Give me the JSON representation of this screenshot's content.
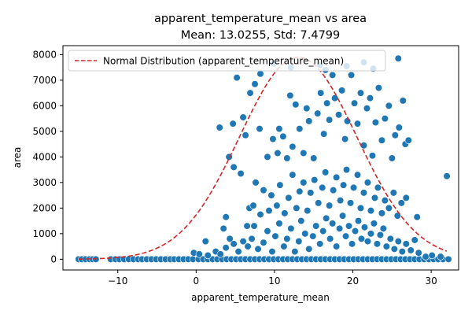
{
  "chart_data": {
    "type": "scatter",
    "title": "apparent_temperature_mean vs area",
    "subtitle": "Mean: 13.0255, Std: 7.4799",
    "xlabel": "apparent_temperature_mean",
    "ylabel": "area",
    "xlim": [
      -17,
      33.5
    ],
    "ylim": [
      -420,
      8350
    ],
    "xticks": [
      -10,
      0,
      10,
      20,
      30
    ],
    "yticks": [
      0,
      1000,
      2000,
      3000,
      4000,
      5000,
      6000,
      7000,
      8000
    ],
    "grid": false,
    "legend_position": "top-left",
    "colors": {
      "scatter": "#1f77b4",
      "curve": "#d62728"
    },
    "normal_curve": {
      "name": "Normal Distribution (apparent_temperature_mean)",
      "mean": 13.0255,
      "std": 7.4799,
      "peak_area": 7900,
      "style": "dashed"
    },
    "series": [
      {
        "points": [
          [
            -15,
            0
          ],
          [
            -14.6,
            0
          ],
          [
            -14.1,
            0
          ],
          [
            -13.6,
            0
          ],
          [
            -13.2,
            0
          ],
          [
            -12.8,
            0
          ],
          [
            -10.9,
            0
          ],
          [
            -10.3,
            0
          ],
          [
            -9.8,
            0
          ],
          [
            -9.2,
            0
          ],
          [
            -8.6,
            0
          ],
          [
            -8,
            0
          ],
          [
            -7.4,
            0
          ],
          [
            -6.9,
            0
          ],
          [
            -6.3,
            0
          ],
          [
            -5.7,
            0
          ],
          [
            -5.1,
            0
          ],
          [
            -4.5,
            0
          ],
          [
            -3.9,
            0
          ],
          [
            -3.3,
            0
          ],
          [
            -2.8,
            0
          ],
          [
            -2.2,
            0
          ],
          [
            -1.6,
            0
          ],
          [
            -1,
            0
          ],
          [
            -0.4,
            0
          ],
          [
            0.3,
            0
          ],
          [
            0.9,
            0
          ],
          [
            1.5,
            0
          ],
          [
            2.1,
            0
          ],
          [
            2.7,
            0
          ],
          [
            3.3,
            0
          ],
          [
            3.9,
            0
          ],
          [
            4.5,
            0
          ],
          [
            5.1,
            0
          ],
          [
            5.7,
            0
          ],
          [
            6.3,
            0
          ],
          [
            6.9,
            0
          ],
          [
            7.5,
            0
          ],
          [
            8.1,
            0
          ],
          [
            8.7,
            0
          ],
          [
            9.3,
            0
          ],
          [
            9.9,
            0
          ],
          [
            10.5,
            0
          ],
          [
            11.1,
            0
          ],
          [
            11.7,
            0
          ],
          [
            12.3,
            0
          ],
          [
            12.9,
            0
          ],
          [
            13.5,
            0
          ],
          [
            14.1,
            0
          ],
          [
            14.7,
            0
          ],
          [
            15.3,
            0
          ],
          [
            15.9,
            0
          ],
          [
            16.5,
            0
          ],
          [
            17.1,
            0
          ],
          [
            17.7,
            0
          ],
          [
            18.3,
            0
          ],
          [
            18.9,
            0
          ],
          [
            19.5,
            0
          ],
          [
            20.1,
            0
          ],
          [
            20.7,
            0
          ],
          [
            21.3,
            0
          ],
          [
            21.9,
            0
          ],
          [
            22.5,
            0
          ],
          [
            23.1,
            0
          ],
          [
            23.7,
            0
          ],
          [
            24.3,
            0
          ],
          [
            24.9,
            0
          ],
          [
            25.5,
            0
          ],
          [
            26.1,
            0
          ],
          [
            26.7,
            0
          ],
          [
            27.3,
            0
          ],
          [
            27.9,
            0
          ],
          [
            28.5,
            0
          ],
          [
            29.1,
            0
          ],
          [
            29.7,
            0
          ],
          [
            30.3,
            0
          ],
          [
            30.9,
            0
          ],
          [
            31.5,
            0
          ],
          [
            32.2,
            0
          ],
          [
            -0.3,
            250
          ],
          [
            0.4,
            200
          ],
          [
            1.2,
            700
          ],
          [
            1.5,
            150
          ],
          [
            2.5,
            300
          ],
          [
            3.1,
            200
          ],
          [
            3.8,
            450
          ],
          [
            4.3,
            800
          ],
          [
            4.8,
            600
          ],
          [
            5.4,
            300
          ],
          [
            6,
            700
          ],
          [
            6.6,
            500
          ],
          [
            7.1,
            800
          ],
          [
            7.4,
            1300
          ],
          [
            7.9,
            400
          ],
          [
            8.6,
            650
          ],
          [
            9.1,
            1100
          ],
          [
            9.7,
            300
          ],
          [
            10.1,
            900
          ],
          [
            10.6,
            1400
          ],
          [
            11.2,
            500
          ],
          [
            11.6,
            800
          ],
          [
            12.1,
            1200
          ],
          [
            12.6,
            300
          ],
          [
            13.1,
            700
          ],
          [
            13.4,
            1500
          ],
          [
            13.9,
            1000
          ],
          [
            14.4,
            400
          ],
          [
            14.9,
            900
          ],
          [
            15.3,
            1300
          ],
          [
            15.8,
            600
          ],
          [
            16.2,
            1100
          ],
          [
            16.6,
            1600
          ],
          [
            17.1,
            800
          ],
          [
            17.4,
            1400
          ],
          [
            17.9,
            500
          ],
          [
            18.3,
            1200
          ],
          [
            18.7,
            1700
          ],
          [
            19.1,
            900
          ],
          [
            19.5,
            1300
          ],
          [
            19.9,
            600
          ],
          [
            20.3,
            1100
          ],
          [
            20.7,
            1500
          ],
          [
            21.1,
            800
          ],
          [
            21.5,
            1250
          ],
          [
            21.9,
            700
          ],
          [
            22.3,
            1000
          ],
          [
            22.7,
            1400
          ],
          [
            23.1,
            600
          ],
          [
            23.5,
            950
          ],
          [
            23.9,
            1200
          ],
          [
            24.3,
            500
          ],
          [
            24.8,
            800
          ],
          [
            25.3,
            400
          ],
          [
            25.8,
            700
          ],
          [
            26.3,
            300
          ],
          [
            26.8,
            600
          ],
          [
            27.4,
            350
          ],
          [
            27.9,
            750
          ],
          [
            28.4,
            250
          ],
          [
            29.3,
            100
          ],
          [
            30.1,
            150
          ],
          [
            31.2,
            100
          ],
          [
            3.5,
            1200
          ],
          [
            3.8,
            1650
          ],
          [
            4.2,
            4000
          ],
          [
            4.8,
            3600
          ],
          [
            5.7,
            3350
          ],
          [
            6.5,
            1300
          ],
          [
            6.8,
            2000
          ],
          [
            7.3,
            2100
          ],
          [
            7.6,
            3000
          ],
          [
            8.2,
            1750
          ],
          [
            8.6,
            2700
          ],
          [
            9.3,
            1900
          ],
          [
            9.6,
            2500
          ],
          [
            10.3,
            2100
          ],
          [
            10.7,
            2900
          ],
          [
            11.3,
            1800
          ],
          [
            11.8,
            2400
          ],
          [
            12.3,
            3300
          ],
          [
            12.8,
            2000
          ],
          [
            13.2,
            2650
          ],
          [
            13.7,
            3000
          ],
          [
            14.2,
            1900
          ],
          [
            14.6,
            2600
          ],
          [
            15.1,
            3100
          ],
          [
            15.6,
            2200
          ],
          [
            16.1,
            2800
          ],
          [
            16.5,
            3400
          ],
          [
            17,
            2100
          ],
          [
            17.5,
            2700
          ],
          [
            17.9,
            3200
          ],
          [
            18.4,
            2300
          ],
          [
            18.8,
            2900
          ],
          [
            19.2,
            3500
          ],
          [
            19.7,
            2200
          ],
          [
            20.1,
            2800
          ],
          [
            20.6,
            3300
          ],
          [
            21,
            2000
          ],
          [
            21.4,
            2600
          ],
          [
            21.9,
            3000
          ],
          [
            22.3,
            1900
          ],
          [
            22.8,
            2400
          ],
          [
            23.2,
            2800
          ],
          [
            23.7,
            1800
          ],
          [
            24.1,
            2300
          ],
          [
            24.6,
            2000
          ],
          [
            25.2,
            2600
          ],
          [
            25.7,
            1700
          ],
          [
            26.2,
            2200
          ],
          [
            26.8,
            2400
          ],
          [
            28.2,
            1650
          ],
          [
            3,
            5150
          ],
          [
            4.7,
            5300
          ],
          [
            5.2,
            7100
          ],
          [
            6,
            5550
          ],
          [
            6.3,
            4850
          ],
          [
            6.9,
            6500
          ],
          [
            7.5,
            6850
          ],
          [
            8.1,
            5100
          ],
          [
            8.2,
            7250
          ],
          [
            9.1,
            4000
          ],
          [
            9.8,
            4700
          ],
          [
            10.4,
            4150
          ],
          [
            10.6,
            5100
          ],
          [
            11.1,
            4800
          ],
          [
            11.6,
            3950
          ],
          [
            12,
            6400
          ],
          [
            12.3,
            4400
          ],
          [
            12.7,
            6050
          ],
          [
            13.2,
            5100
          ],
          [
            13.7,
            4150
          ],
          [
            14.1,
            5900
          ],
          [
            14.4,
            5400
          ],
          [
            15,
            3950
          ],
          [
            15.5,
            5700
          ],
          [
            15.9,
            6500
          ],
          [
            16.3,
            4900
          ],
          [
            16.7,
            6100
          ],
          [
            17,
            5450
          ],
          [
            17.4,
            7200
          ],
          [
            17.7,
            6300
          ],
          [
            18.2,
            5650
          ],
          [
            18.6,
            6600
          ],
          [
            19,
            4700
          ],
          [
            19.3,
            5400
          ],
          [
            19.8,
            7200
          ],
          [
            20.2,
            6100
          ],
          [
            20.6,
            5300
          ],
          [
            21,
            6500
          ],
          [
            21.4,
            4450
          ],
          [
            21.8,
            5900
          ],
          [
            22.2,
            6300
          ],
          [
            22.5,
            4050
          ],
          [
            22.9,
            5350
          ],
          [
            23.3,
            6700
          ],
          [
            23.7,
            4650
          ],
          [
            24.1,
            5500
          ],
          [
            24.6,
            6000
          ],
          [
            25,
            3950
          ],
          [
            25.4,
            4850
          ],
          [
            25.9,
            5150
          ],
          [
            26.4,
            6200
          ],
          [
            26.7,
            4500
          ],
          [
            27.1,
            4650
          ],
          [
            9.9,
            7650
          ],
          [
            12.1,
            7500
          ],
          [
            15.8,
            7600
          ],
          [
            16.5,
            7400
          ],
          [
            19.2,
            7550
          ],
          [
            21.4,
            7700
          ],
          [
            22.6,
            7450
          ],
          [
            25.8,
            7850
          ],
          [
            32,
            3250
          ]
        ]
      }
    ]
  }
}
